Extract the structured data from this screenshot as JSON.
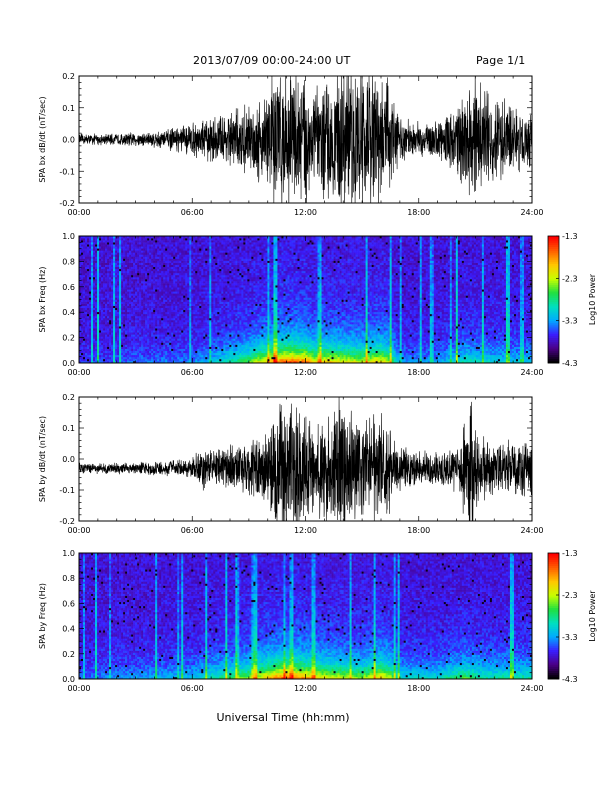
{
  "header": {
    "title": "2013/07/09   00:00-24:00  UT",
    "page": "Page 1/1"
  },
  "xlabel": "Universal Time (hh:mm)",
  "colorbar": {
    "label": "Log10 Power",
    "ticks": [
      "-1.3",
      "-2.3",
      "-3.3",
      "-4.3"
    ],
    "colors": [
      "#000000",
      "#4b0088",
      "#3a1eff",
      "#00aaff",
      "#00e0c0",
      "#20e040",
      "#c8ff00",
      "#ffc800",
      "#ff6000",
      "#ff0000"
    ]
  },
  "chart_data": [
    {
      "type": "line",
      "id": "bx-dbdt",
      "ylabel": "SPA bx dB/dt (nT/sec)",
      "x_tick_labels": [
        "00:00",
        "06:00",
        "12:00",
        "18:00",
        "24:00"
      ],
      "xlim": [
        0,
        24
      ],
      "ylim": [
        -0.2,
        0.2
      ],
      "y_tick_labels": [
        "0.2",
        "0.1",
        "0.0",
        "-0.1",
        "-0.2"
      ],
      "y_ticks": [
        0.2,
        0.1,
        0.0,
        -0.1,
        -0.2
      ],
      "baseline": 0.0,
      "amplitude_envelope": [
        [
          0,
          0.02
        ],
        [
          2,
          0.02
        ],
        [
          3,
          0.025
        ],
        [
          4,
          0.03
        ],
        [
          5,
          0.04
        ],
        [
          6,
          0.06
        ],
        [
          7,
          0.08
        ],
        [
          8,
          0.1
        ],
        [
          9,
          0.12
        ],
        [
          9.8,
          0.16
        ],
        [
          10.2,
          0.25
        ],
        [
          11,
          0.25
        ],
        [
          12,
          0.25
        ],
        [
          12.5,
          0.18
        ],
        [
          13.2,
          0.22
        ],
        [
          14,
          0.25
        ],
        [
          15,
          0.25
        ],
        [
          15.8,
          0.25
        ],
        [
          16.5,
          0.2
        ],
        [
          17,
          0.08
        ],
        [
          18,
          0.06
        ],
        [
          19,
          0.07
        ],
        [
          19.8,
          0.1
        ],
        [
          20.3,
          0.17
        ],
        [
          21,
          0.22
        ],
        [
          22,
          0.15
        ],
        [
          23,
          0.12
        ],
        [
          24,
          0.1
        ]
      ]
    },
    {
      "type": "heatmap",
      "id": "bx-freq",
      "ylabel": "SPA bx Freq (Hz)",
      "x_tick_labels": [
        "00:00",
        "06:00",
        "12:00",
        "18:00",
        "24:00"
      ],
      "xlim": [
        0,
        24
      ],
      "ylim": [
        0,
        1.0
      ],
      "y_tick_labels": [
        "1.0",
        "0.8",
        "0.6",
        "0.4",
        "0.2",
        "0.0"
      ],
      "y_ticks": [
        1.0,
        0.8,
        0.6,
        0.4,
        0.2,
        0.0
      ],
      "zlim": [
        -4.3,
        -1.3
      ],
      "intensity_profile": [
        [
          0,
          0.05
        ],
        [
          3,
          0.1
        ],
        [
          6,
          0.12
        ],
        [
          7,
          0.2
        ],
        [
          8,
          0.3
        ],
        [
          9,
          0.4
        ],
        [
          10,
          0.6
        ],
        [
          11,
          0.75
        ],
        [
          12,
          0.7
        ],
        [
          12.5,
          0.55
        ],
        [
          13,
          0.6
        ],
        [
          14,
          0.55
        ],
        [
          15,
          0.5
        ],
        [
          16,
          0.6
        ],
        [
          16.5,
          0.45
        ],
        [
          17,
          0.15
        ],
        [
          19,
          0.15
        ],
        [
          20.5,
          0.3
        ],
        [
          21.5,
          0.25
        ],
        [
          24,
          0.2
        ]
      ]
    },
    {
      "type": "line",
      "id": "by-dbdt",
      "ylabel": "SPA by dB/dt (nT/sec)",
      "x_tick_labels": [
        "00:00",
        "06:00",
        "12:00",
        "18:00",
        "24:00"
      ],
      "xlim": [
        0,
        24
      ],
      "ylim": [
        -0.2,
        0.2
      ],
      "y_tick_labels": [
        "0.2",
        "0.1",
        "0.0",
        "-0.1",
        "-0.2"
      ],
      "y_ticks": [
        0.2,
        0.1,
        0.0,
        -0.1,
        -0.2
      ],
      "baseline": -0.03,
      "amplitude_envelope": [
        [
          0,
          0.02
        ],
        [
          2,
          0.02
        ],
        [
          3,
          0.02
        ],
        [
          4,
          0.025
        ],
        [
          5,
          0.03
        ],
        [
          6,
          0.04
        ],
        [
          6.5,
          0.08
        ],
        [
          7,
          0.06
        ],
        [
          8,
          0.08
        ],
        [
          9,
          0.1
        ],
        [
          10,
          0.12
        ],
        [
          10.5,
          0.22
        ],
        [
          11,
          0.25
        ],
        [
          12,
          0.22
        ],
        [
          12.5,
          0.15
        ],
        [
          13,
          0.2
        ],
        [
          14,
          0.25
        ],
        [
          15,
          0.18
        ],
        [
          16,
          0.2
        ],
        [
          16.5,
          0.15
        ],
        [
          17,
          0.08
        ],
        [
          18,
          0.06
        ],
        [
          19,
          0.06
        ],
        [
          20,
          0.08
        ],
        [
          20.8,
          0.25
        ],
        [
          21.2,
          0.12
        ],
        [
          22,
          0.09
        ],
        [
          23,
          0.1
        ],
        [
          24,
          0.1
        ]
      ]
    },
    {
      "type": "heatmap",
      "id": "by-freq",
      "ylabel": "SPA by Freq (Hz)",
      "x_tick_labels": [
        "00:00",
        "06:00",
        "12:00",
        "18:00",
        "24:00"
      ],
      "xlim": [
        0,
        24
      ],
      "ylim": [
        0,
        1.0
      ],
      "y_tick_labels": [
        "1.0",
        "0.8",
        "0.6",
        "0.4",
        "0.2",
        "0.0"
      ],
      "y_ticks": [
        1.0,
        0.8,
        0.6,
        0.4,
        0.2,
        0.0
      ],
      "zlim": [
        -4.3,
        -1.3
      ],
      "intensity_profile": [
        [
          0,
          0.1
        ],
        [
          3,
          0.15
        ],
        [
          6,
          0.2
        ],
        [
          7,
          0.3
        ],
        [
          8,
          0.35
        ],
        [
          9,
          0.45
        ],
        [
          10,
          0.6
        ],
        [
          11,
          0.75
        ],
        [
          12,
          0.65
        ],
        [
          12.5,
          0.6
        ],
        [
          13,
          0.55
        ],
        [
          14,
          0.5
        ],
        [
          15,
          0.45
        ],
        [
          16,
          0.6
        ],
        [
          16.5,
          0.5
        ],
        [
          17,
          0.25
        ],
        [
          19,
          0.25
        ],
        [
          20.5,
          0.4
        ],
        [
          21.5,
          0.3
        ],
        [
          24,
          0.3
        ]
      ]
    }
  ]
}
